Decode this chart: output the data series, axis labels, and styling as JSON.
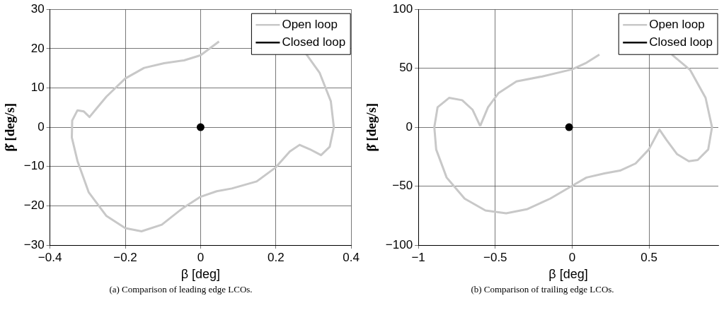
{
  "chart_data": [
    {
      "type": "line",
      "xlabel": "β [deg]",
      "ylabel": "β̇ [deg/s]",
      "annotations": [
        "(a) Comparison of leading edge LCOs."
      ],
      "xlim": [
        -0.4,
        0.4
      ],
      "xticks": [
        -0.4,
        -0.2,
        0,
        0.2,
        0.4
      ],
      "ylim": [
        -30,
        30
      ],
      "yticks": [
        -30,
        -20,
        -10,
        0,
        10,
        20,
        30
      ],
      "grid": true,
      "legend": "top right",
      "line_style": "solid",
      "series": [
        {
          "name": "Open loop",
          "color": "#c8c8c8",
          "x": [
            0,
            0.049,
            null,
            0.28,
            0.316,
            0.346,
            0.354,
            0.343,
            0.32,
            0.29,
            0.263,
            0.237,
            0.2,
            0.149,
            0.083,
            0.043,
            0,
            -0.05,
            -0.103,
            -0.157,
            -0.2,
            -0.25,
            -0.297,
            -0.327,
            -0.342,
            -0.341,
            -0.327,
            -0.31,
            -0.295,
            -0.277,
            -0.25,
            -0.2,
            -0.15,
            -0.097,
            -0.044,
            0
          ],
          "values": [
            18.3,
            21.8,
            null,
            18.7,
            13.9,
            6.6,
            0,
            -5,
            -7.1,
            -5.6,
            -4.5,
            -6.2,
            -10.2,
            -13.8,
            -15.6,
            -16.3,
            -17.7,
            -20.8,
            -24.8,
            -26.5,
            -25.7,
            -22.6,
            -16.6,
            -8.6,
            -2.6,
            1.7,
            4.3,
            4,
            2.6,
            4.7,
            7.8,
            12.4,
            15.1,
            16.3,
            17,
            18.3
          ]
        },
        {
          "name": "Closed loop",
          "type": "scatter",
          "color": "#000000",
          "x": [
            0
          ],
          "values": [
            0
          ]
        }
      ]
    },
    {
      "type": "line",
      "xlabel": "β [deg]",
      "ylabel": "β̇ [deg/s]",
      "annotations": [
        "(b) Comparison of trailing edge LCOs."
      ],
      "xlim": [
        -1,
        0.95
      ],
      "xticks": [
        -1,
        -0.5,
        0,
        0.5
      ],
      "ylim": [
        -100,
        100
      ],
      "yticks": [
        -100,
        -50,
        0,
        50,
        100
      ],
      "grid": true,
      "legend": "top right",
      "line_style": "solid",
      "series": [
        {
          "name": "Open loop",
          "color": "#c8c8c8",
          "x": [
            -0.598,
            -0.547,
            -0.48,
            -0.362,
            -0.194,
            -0.076,
            0,
            0.093,
            0.177,
            null,
            0.648,
            0.766,
            0.867,
            0.909,
            0.884,
            0.816,
            0.758,
            0.682,
            0.614,
            0.567,
            0.539,
            0.498,
            0.412,
            0.311,
            0.21,
            0.093,
            0,
            -0.143,
            -0.295,
            -0.429,
            -0.564,
            -0.699,
            -0.816,
            -0.884,
            -0.896,
            -0.875,
            -0.8,
            -0.715,
            -0.648,
            -0.598
          ],
          "values": [
            1,
            16.9,
            28.8,
            38.8,
            43.1,
            46.7,
            49.1,
            54.7,
            61.6,
            null,
            61.6,
            48.7,
            24.9,
            0,
            -18.9,
            -27.8,
            -28.8,
            -22.9,
            -10.9,
            -2,
            -8.9,
            -18.9,
            -30.8,
            -36.8,
            -39.2,
            -42.7,
            -49.7,
            -60.6,
            -69.6,
            -73,
            -70.6,
            -60.6,
            -42.7,
            -18.9,
            0,
            16.9,
            24.9,
            22.9,
            14.9,
            1
          ]
        },
        {
          "name": "Closed loop",
          "type": "scatter",
          "color": "#000000",
          "x": [
            -0.02
          ],
          "values": [
            0
          ]
        }
      ]
    }
  ]
}
